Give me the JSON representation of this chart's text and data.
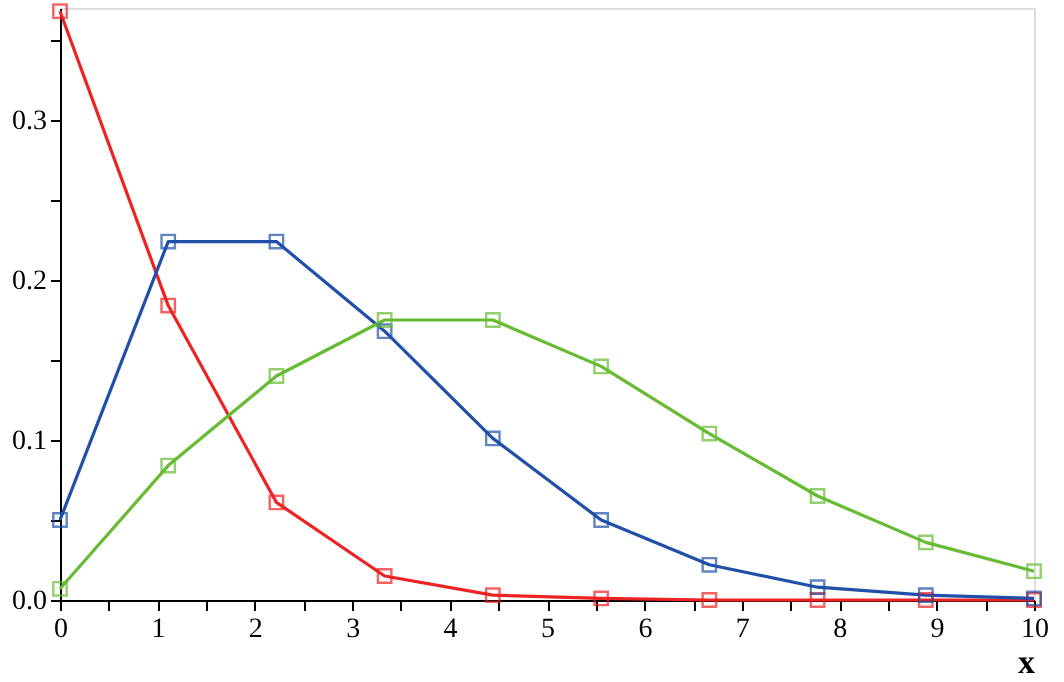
{
  "chart_data": {
    "type": "line",
    "xlabel": "x",
    "x": [
      0,
      1.111,
      2.222,
      3.333,
      4.444,
      5.556,
      6.667,
      7.778,
      8.889,
      10
    ],
    "series": [
      {
        "color": "#ee2222",
        "values": [
          0.368,
          0.184,
          0.061,
          0.015,
          0.003,
          0.001,
          0,
          0,
          0,
          0
        ]
      },
      {
        "color": "#1f4fa8",
        "values": [
          0.05,
          0.224,
          0.224,
          0.168,
          0.101,
          0.05,
          0.022,
          0.008,
          0.003,
          0.001
        ]
      },
      {
        "color": "#66bb33",
        "values": [
          0.007,
          0.084,
          0.14,
          0.175,
          0.175,
          0.146,
          0.104,
          0.065,
          0.036,
          0.018
        ]
      }
    ],
    "xlim": [
      0,
      10
    ],
    "ylim": [
      0,
      0.37
    ],
    "xticks": [
      0,
      {
        "value": 0.5,
        "label": null
      },
      1,
      {
        "value": 1.5,
        "label": null
      },
      2,
      {
        "value": 2.5,
        "label": null
      },
      3,
      {
        "value": 3.5,
        "label": null
      },
      4,
      {
        "value": 4.5,
        "label": null
      },
      5,
      {
        "value": 5.5,
        "label": null
      },
      6,
      {
        "value": 6.5,
        "label": null
      },
      7,
      {
        "value": 7.5,
        "label": null
      },
      8,
      {
        "value": 8.5,
        "label": null
      },
      9,
      {
        "value": 9.5,
        "label": null
      },
      10
    ],
    "yticks": [
      {
        "value": 0,
        "label": "0.0"
      },
      {
        "value": 0.05,
        "label": null
      },
      {
        "value": 0.1,
        "label": "0.1"
      },
      {
        "value": 0.15,
        "label": null
      },
      {
        "value": 0.2,
        "label": "0.2"
      },
      {
        "value": 0.25,
        "label": null
      },
      {
        "value": 0.3,
        "label": "0.3"
      },
      {
        "value": 0.35,
        "label": null
      }
    ],
    "marker": "square",
    "line_style": "solid",
    "grid": false
  }
}
